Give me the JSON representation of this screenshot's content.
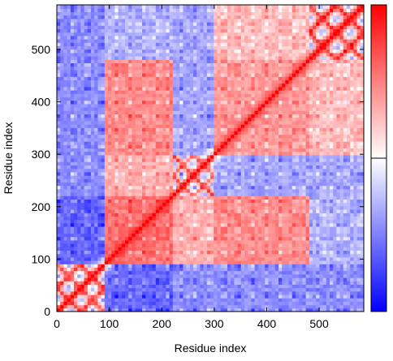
{
  "chart_data": {
    "type": "heatmap",
    "title": "",
    "xlabel": "Residue index",
    "ylabel": "Residue index",
    "xlim": [
      0,
      585
    ],
    "ylim": [
      0,
      585
    ],
    "xticks": [
      0,
      100,
      200,
      300,
      400,
      500
    ],
    "yticks": [
      0,
      100,
      200,
      300,
      400,
      500
    ],
    "colorbar": {
      "orientation": "vertical",
      "colors": [
        "#0000ff",
        "#ffffff",
        "#ff0000"
      ],
      "ticks_labeled": false
    },
    "symmetric": true,
    "diagonal_value": 1.0,
    "blocks": [
      {
        "range": [
          0,
          90
        ],
        "value": 0.8,
        "pattern": "lattice"
      },
      {
        "range": [
          90,
          220
        ],
        "value": 0.55
      },
      {
        "range": [
          220,
          300
        ],
        "value": 0.7,
        "pattern": "lattice"
      },
      {
        "range": [
          300,
          480
        ],
        "value": 0.4
      },
      {
        "range": [
          480,
          585
        ],
        "value": 0.85,
        "pattern": "lattice"
      }
    ],
    "off_diagonal_regions": [
      {
        "x": [
          0,
          90
        ],
        "y": [
          90,
          220
        ],
        "value": -0.6
      },
      {
        "x": [
          0,
          90
        ],
        "y": [
          220,
          585
        ],
        "value": -0.45
      },
      {
        "x": [
          90,
          220
        ],
        "y": [
          220,
          300
        ],
        "value": 0.3
      },
      {
        "x": [
          90,
          220
        ],
        "y": [
          300,
          480
        ],
        "value": 0.45
      },
      {
        "x": [
          90,
          220
        ],
        "y": [
          480,
          585
        ],
        "value": -0.3
      },
      {
        "x": [
          220,
          300
        ],
        "y": [
          300,
          585
        ],
        "value": -0.35
      },
      {
        "x": [
          300,
          480
        ],
        "y": [
          480,
          585
        ],
        "value": 0.25
      }
    ]
  }
}
